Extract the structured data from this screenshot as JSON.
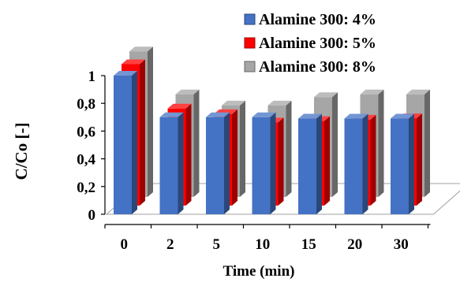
{
  "chart_data": {
    "type": "bar",
    "title": "",
    "xlabel": "Time (min)",
    "ylabel": "C/Co [-]",
    "categories": [
      "0",
      "2",
      "5",
      "10",
      "15",
      "20",
      "30"
    ],
    "ylim": [
      0,
      1
    ],
    "yticks": [
      "0",
      "0,2",
      "0,4",
      "0,6",
      "0,8",
      "1"
    ],
    "legend_position": "top-right",
    "series": [
      {
        "name": "Alamine 300: 4%",
        "color": "#4472C4",
        "values": [
          1.0,
          0.7,
          0.7,
          0.7,
          0.69,
          0.69,
          0.69
        ]
      },
      {
        "name": "Alamine 300: 5%",
        "color": "#FF0000",
        "values": [
          1.02,
          0.7,
          0.66,
          0.6,
          0.61,
          0.62,
          0.63
        ]
      },
      {
        "name": "Alamine 300: 8%",
        "color": "#A6A6A6",
        "values": [
          1.05,
          0.74,
          0.66,
          0.66,
          0.72,
          0.74,
          0.74
        ]
      }
    ]
  }
}
